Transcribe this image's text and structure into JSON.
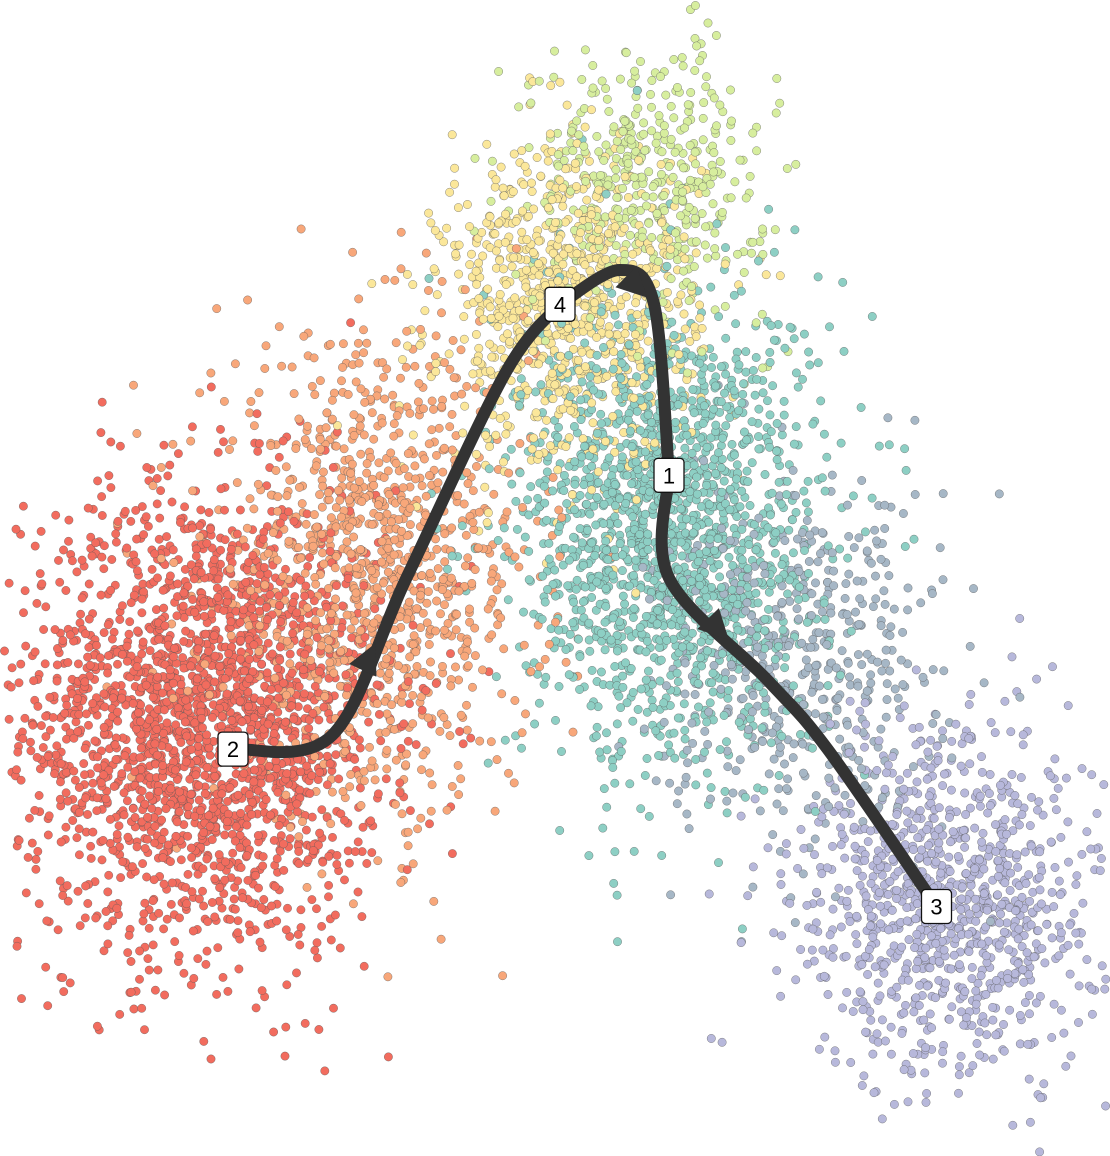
{
  "chart_data": {
    "type": "scatter",
    "description_kind": "trajectory embedding with cluster-colored cells",
    "axes_visible": false,
    "grid": false,
    "legend": "none",
    "clusters": [
      {
        "name": "",
        "color": "#f26c5e",
        "center": [
          -0.86,
          -0.16
        ],
        "spread": [
          0.18,
          0.17
        ],
        "count": 2200
      },
      {
        "name": "",
        "color": "#f8a77a",
        "center": [
          -0.52,
          0.05
        ],
        "spread": [
          0.16,
          0.17
        ],
        "count": 1100
      },
      {
        "name": "",
        "color": "#fbe79a",
        "center": [
          -0.12,
          0.45
        ],
        "spread": [
          0.13,
          0.12
        ],
        "count": 900
      },
      {
        "name": "",
        "color": "#d7ee9e",
        "center": [
          0.04,
          0.63
        ],
        "spread": [
          0.12,
          0.1
        ],
        "count": 450
      },
      {
        "name": "",
        "color": "#8dcfc4",
        "center": [
          0.08,
          0.12
        ],
        "spread": [
          0.15,
          0.17
        ],
        "count": 1700
      },
      {
        "name": "",
        "color": "#a6b7c6",
        "center": [
          0.35,
          -0.08
        ],
        "spread": [
          0.14,
          0.13
        ],
        "count": 500
      },
      {
        "name": "",
        "color": "#b7b8db",
        "center": [
          0.65,
          -0.42
        ],
        "spread": [
          0.15,
          0.13
        ],
        "count": 1000
      }
    ],
    "trajectory_nodes": [
      {
        "label": "1",
        "x": 0.08,
        "y": 0.2
      },
      {
        "label": "2",
        "x": -0.8,
        "y": -0.2
      },
      {
        "label": "3",
        "x": 0.62,
        "y": -0.43
      },
      {
        "label": "4",
        "x": -0.14,
        "y": 0.45
      }
    ],
    "trajectory_path": [
      {
        "from": "2",
        "to": "4",
        "via": [
          [
            -0.6,
            -0.18
          ],
          [
            -0.45,
            0.05
          ],
          [
            -0.25,
            0.35
          ]
        ]
      },
      {
        "from": "4",
        "to": "1",
        "via": [
          [
            -0.02,
            0.5
          ],
          [
            0.05,
            0.45
          ]
        ]
      },
      {
        "from": "1",
        "to": "3",
        "via": [
          [
            0.08,
            0.05
          ],
          [
            0.28,
            -0.1
          ],
          [
            0.4,
            -0.2
          ]
        ]
      }
    ],
    "xlim": [
      -1.25,
      0.95
    ],
    "ylim": [
      -0.78,
      0.88
    ]
  }
}
